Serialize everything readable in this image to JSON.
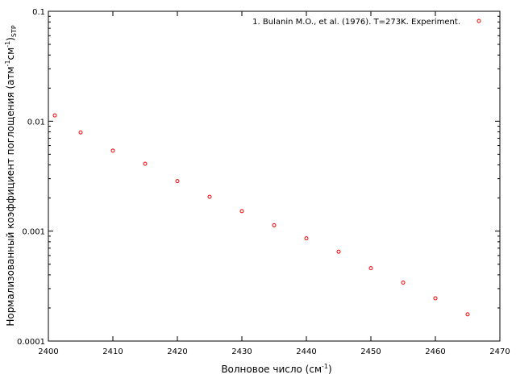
{
  "chart_data": {
    "type": "scatter",
    "xlabel": {
      "text": "Волновое число (см",
      "sup": "-1",
      "after": ")"
    },
    "ylabel": {
      "pre": "Нормализованный коэффициент поглощения (атм",
      "sup1": "-1",
      "mid": "см",
      "sup2": "-1",
      "post": ")",
      "sub": "STP"
    },
    "xlim": [
      2400,
      2470
    ],
    "ylim": [
      0.0001,
      0.1
    ],
    "yscale": "log",
    "grid": false,
    "legend_position": "top-right",
    "xticks": [
      2400,
      2410,
      2420,
      2430,
      2440,
      2450,
      2460,
      2470
    ],
    "xtick_labels": [
      "2400",
      "2410",
      "2420",
      "2430",
      "2440",
      "2450",
      "2460",
      "2470"
    ],
    "yticks": [
      0.0001,
      0.001,
      0.01,
      0.1
    ],
    "ytick_labels": [
      "0.0001",
      "0.001",
      "0.01",
      "0.1"
    ],
    "series": [
      {
        "name": "1. Bulanin M.O., et al. (1976). T=273K. Experiment.",
        "color": "#ff0000",
        "marker": "circle-open",
        "x": [
          2401,
          2405,
          2410,
          2415,
          2420,
          2425,
          2430,
          2435,
          2440,
          2445,
          2450,
          2455,
          2460,
          2465
        ],
        "y": [
          0.0113,
          0.0079,
          0.0054,
          0.0041,
          0.00285,
          0.00205,
          0.00152,
          0.00113,
          0.00086,
          0.00065,
          0.00046,
          0.00034,
          0.000245,
          0.000175
        ]
      }
    ]
  }
}
